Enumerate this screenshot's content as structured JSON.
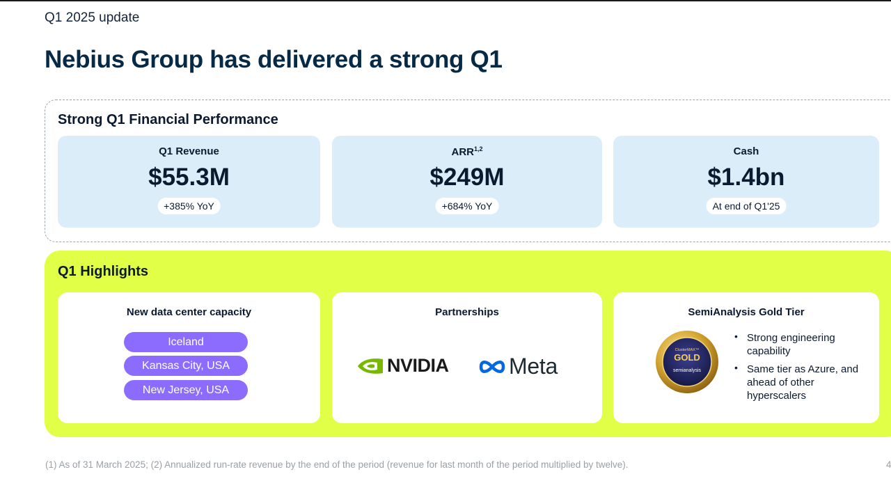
{
  "header": {
    "kicker": "Q1 2025 update",
    "title": "Nebius Group has delivered a strong Q1"
  },
  "financial": {
    "heading": "Strong Q1 Financial Performance",
    "stats": [
      {
        "label": "Q1 Revenue",
        "sup": "",
        "value": "$55.3M",
        "pill": "+385% YoY"
      },
      {
        "label": "ARR",
        "sup": "1,2",
        "value": "$249M",
        "pill": "+684% YoY"
      },
      {
        "label": "Cash",
        "sup": "",
        "value": "$1.4bn",
        "pill": "At end of Q1'25"
      }
    ]
  },
  "highlights": {
    "heading": "Q1 Highlights",
    "capacity": {
      "title": "New data center capacity",
      "locations": [
        "Iceland",
        "Kansas City, USA",
        "New Jersey, USA"
      ]
    },
    "partnerships": {
      "title": "Partnerships",
      "logos": [
        {
          "name": "NVIDIA",
          "icon": "nvidia-eye-icon"
        },
        {
          "name": "Meta",
          "icon": "meta-infinity-icon"
        }
      ]
    },
    "semianalysis": {
      "title": "SemiAnalysis Gold Tier",
      "badge": {
        "top": "ClusterMAX™",
        "tier": "GOLD",
        "brand": "semianalysis"
      },
      "bullets": [
        "Strong engineering capability",
        "Same tier as Azure, and ahead of other hyperscalers"
      ]
    }
  },
  "footer": {
    "footnote": "(1) As of 31 March 2025; (2) Annualized run-rate revenue by the end of the period (revenue for last month of the period multiplied by twelve).",
    "page": "4"
  },
  "colors": {
    "title": "#062a46",
    "stat_card_bg": "#dcedfa",
    "highlight_bg": "#e2ff47",
    "location_pill": "#8b6cff",
    "nvidia_green": "#76b900",
    "meta_blue": "#0668e1",
    "gold": "#d4a531"
  }
}
